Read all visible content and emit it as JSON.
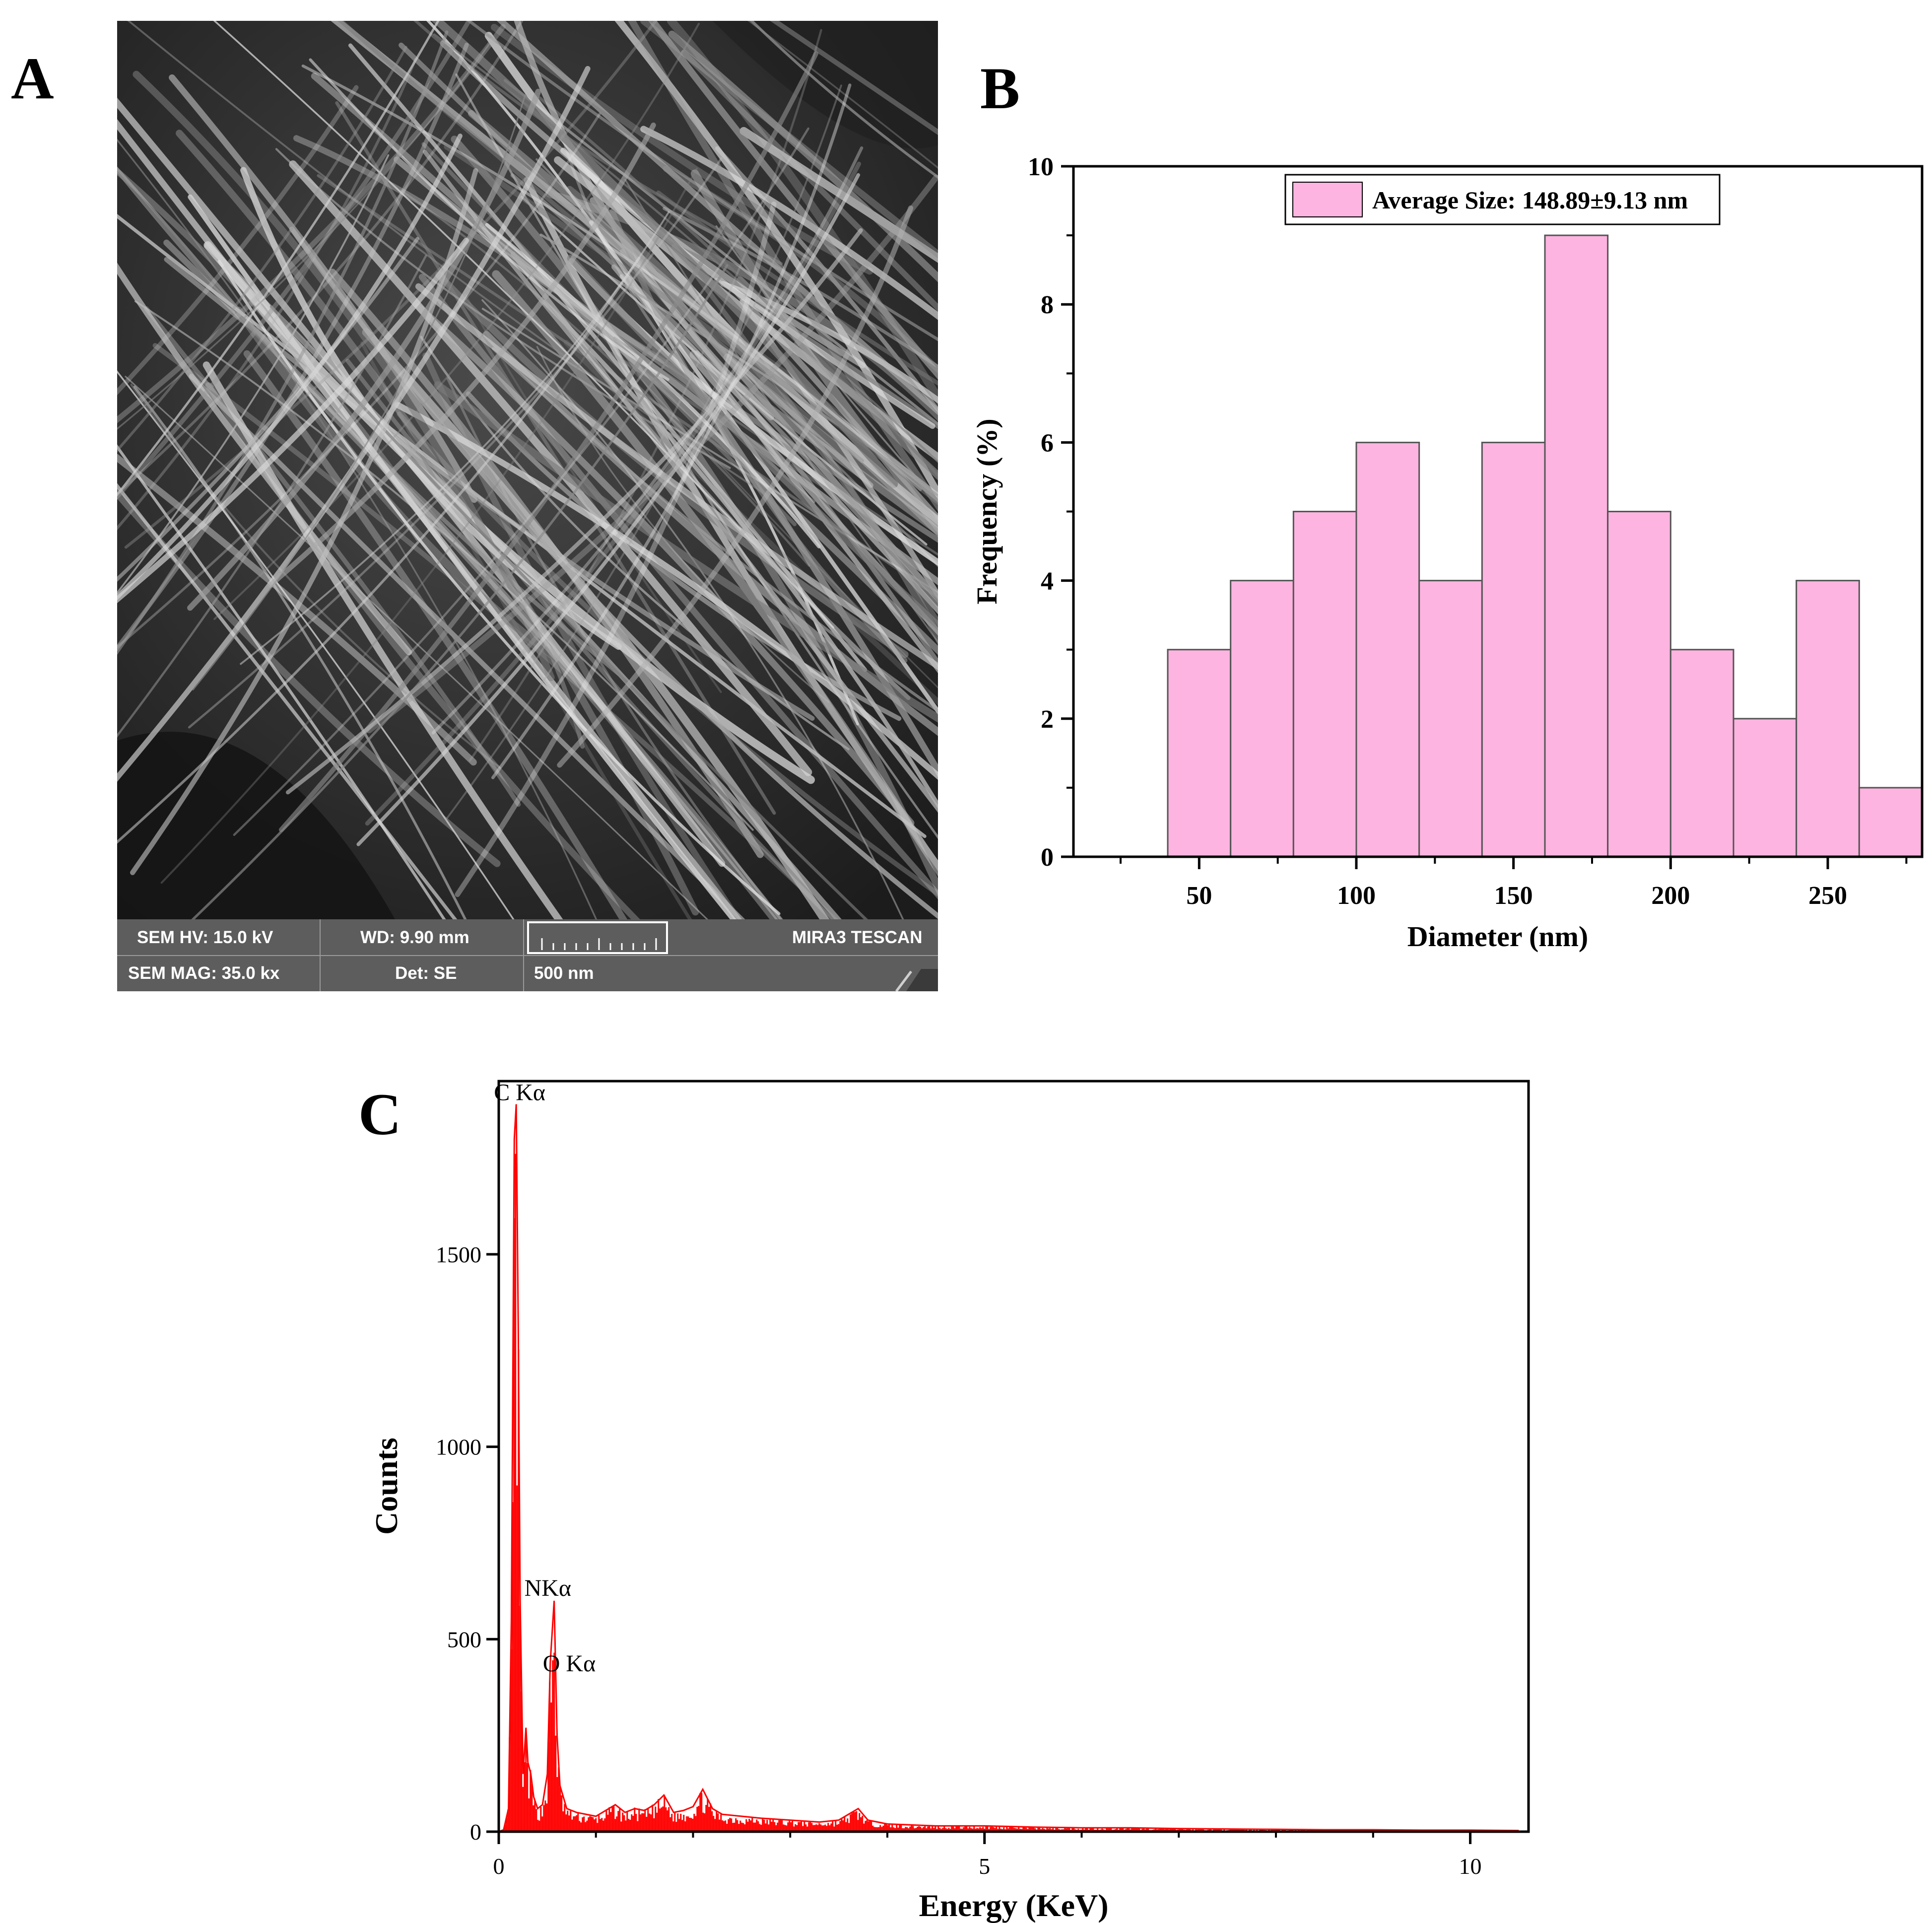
{
  "panels": {
    "a": {
      "letter": "A"
    },
    "b": {
      "letter": "B"
    },
    "c": {
      "letter": "C"
    }
  },
  "sem_info": {
    "hv": "SEM HV: 15.0 kV",
    "wd": "WD: 9.90 mm",
    "brand": "MIRA3 TESCAN",
    "mag": "SEM MAG: 35.0 kx",
    "det": "Det: SE",
    "scale": "500 nm"
  },
  "chart_data": [
    {
      "type": "bar",
      "subtype": "histogram",
      "xlabel": "Diameter (nm)",
      "ylabel": "Frequency (%)",
      "xlim": [
        10,
        280
      ],
      "ylim": [
        0,
        10
      ],
      "xticks": [
        50,
        100,
        150,
        200,
        250
      ],
      "yticks": [
        0,
        2,
        4,
        6,
        8,
        10
      ],
      "bins": [
        {
          "x0": 40,
          "x1": 60,
          "value": 3
        },
        {
          "x0": 60,
          "x1": 80,
          "value": 4
        },
        {
          "x0": 80,
          "x1": 100,
          "value": 5
        },
        {
          "x0": 100,
          "x1": 120,
          "value": 6
        },
        {
          "x0": 120,
          "x1": 140,
          "value": 4
        },
        {
          "x0": 140,
          "x1": 160,
          "value": 6
        },
        {
          "x0": 160,
          "x1": 180,
          "value": 9
        },
        {
          "x0": 180,
          "x1": 200,
          "value": 5
        },
        {
          "x0": 200,
          "x1": 220,
          "value": 3
        },
        {
          "x0": 220,
          "x1": 240,
          "value": 2
        },
        {
          "x0": 240,
          "x1": 260,
          "value": 4
        },
        {
          "x0": 260,
          "x1": 280,
          "value": 1
        }
      ],
      "legend": {
        "label": "Average Size: 148.89±9.13 nm",
        "position": "top-center"
      },
      "bar_color": "#fdb4e0"
    },
    {
      "type": "line",
      "subtype": "EDS spectrum",
      "xlabel": "Energy (KeV)",
      "ylabel": "Counts",
      "xlim": [
        0,
        10.6
      ],
      "ylim": [
        0,
        1950
      ],
      "xticks": [
        0,
        5,
        10
      ],
      "yticks": [
        0,
        500,
        1000,
        1500
      ],
      "color": "#ff0000",
      "peaks": [
        {
          "label": "C Kα",
          "energy": 0.18,
          "counts": 1890
        },
        {
          "label": "NKα",
          "energy": 0.57,
          "counts": 600
        },
        {
          "label": "O Kα",
          "energy": 0.53,
          "counts": 440
        }
      ],
      "x": [
        0.0,
        0.05,
        0.1,
        0.13,
        0.16,
        0.18,
        0.2,
        0.22,
        0.25,
        0.28,
        0.3,
        0.33,
        0.36,
        0.4,
        0.45,
        0.5,
        0.53,
        0.55,
        0.57,
        0.6,
        0.63,
        0.7,
        0.8,
        0.9,
        1.0,
        1.1,
        1.2,
        1.3,
        1.4,
        1.5,
        1.6,
        1.7,
        1.8,
        1.9,
        2.0,
        2.1,
        2.2,
        2.3,
        2.5,
        2.7,
        3.0,
        3.3,
        3.5,
        3.6,
        3.7,
        3.8,
        4.0,
        4.5,
        5.0,
        5.5,
        6.0,
        6.5,
        7.0,
        7.5,
        8.0,
        8.5,
        9.0,
        9.5,
        10.0,
        10.5
      ],
      "y": [
        0,
        5,
        60,
        550,
        1800,
        1890,
        1320,
        600,
        150,
        270,
        180,
        150,
        90,
        60,
        70,
        150,
        440,
        520,
        600,
        250,
        120,
        60,
        50,
        45,
        40,
        55,
        70,
        50,
        60,
        55,
        70,
        95,
        50,
        55,
        65,
        110,
        60,
        45,
        40,
        35,
        30,
        25,
        30,
        45,
        60,
        30,
        20,
        15,
        15,
        12,
        10,
        10,
        8,
        7,
        6,
        5,
        5,
        4,
        4,
        3
      ]
    }
  ]
}
